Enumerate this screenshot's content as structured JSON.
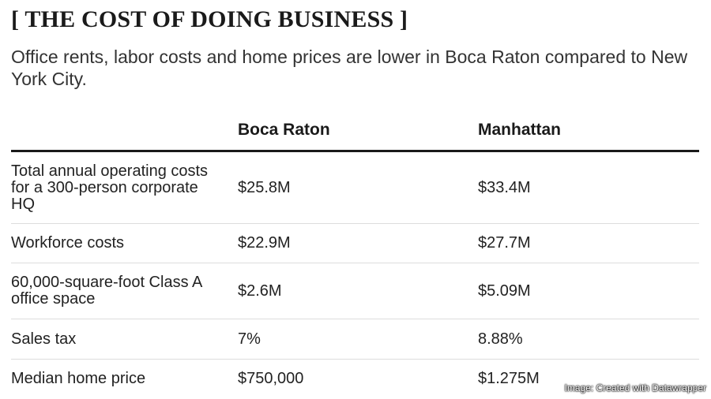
{
  "title": "[ THE COST OF DOING BUSINESS ]",
  "subtitle": "Office rents, labor costs and home prices are lower in Boca Raton compared to New York City.",
  "credit": "Image: Created with Datawrapper",
  "chart_data": {
    "type": "table",
    "title": "[ THE COST OF DOING BUSINESS ]",
    "subtitle": "Office rents, labor costs and home prices are lower in Boca Raton compared to New York City.",
    "columns": [
      "",
      "Boca Raton",
      "Manhattan"
    ],
    "rows": [
      [
        "Total annual operating costs for a 300-person corporate HQ",
        "$25.8M",
        "$33.4M"
      ],
      [
        "Workforce costs",
        "$22.9M",
        "$27.7M"
      ],
      [
        "60,000-square-foot Class A office space",
        "$2.6M",
        "$5.09M"
      ],
      [
        "Sales tax",
        "7%",
        "8.88%"
      ],
      [
        "Median home price",
        "$750,000",
        "$1.275M"
      ]
    ]
  }
}
